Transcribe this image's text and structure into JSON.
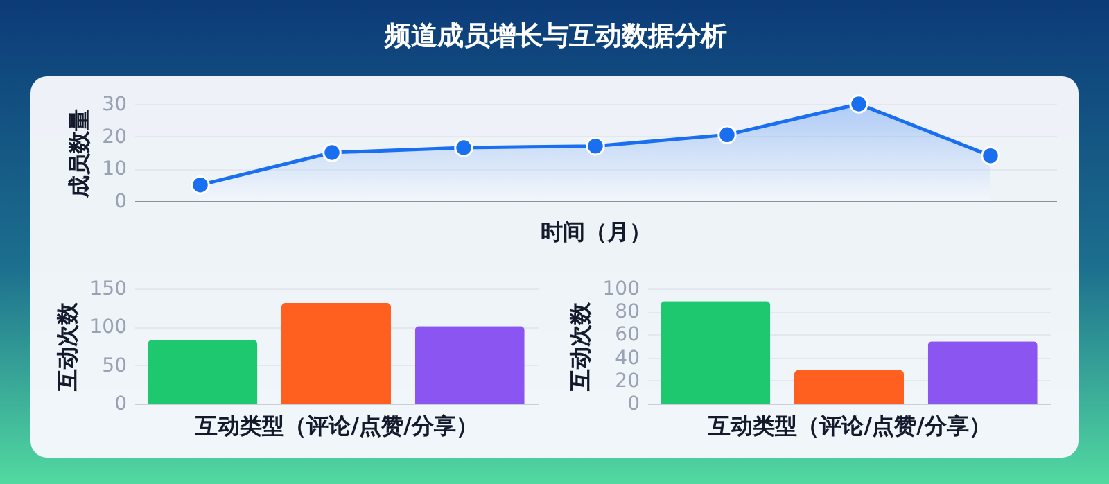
{
  "chart_data": [
    {
      "type": "area",
      "title": "频道成员增长与互动数据分析",
      "xlabel": "时间（月）",
      "ylabel": "成员数量",
      "categories": [
        null,
        null,
        null,
        null,
        null,
        null,
        null
      ],
      "ylim": [
        0,
        30
      ],
      "yticks": [
        0,
        10,
        20,
        30
      ],
      "grid": "y",
      "marker": "circle",
      "tick_labels": "y",
      "series": [
        {
          "color": "#1a6ff0",
          "values": [
            5,
            15,
            16.5,
            17,
            20.5,
            30,
            14
          ]
        }
      ]
    },
    {
      "type": "bar",
      "xlabel": "互动类型（评论/点赞/分享）",
      "ylabel": "互动次数",
      "categories": [
        null,
        null,
        null
      ],
      "values": [
        83,
        131,
        101
      ],
      "colors": [
        "#1ec86e",
        "#ff5f1f",
        "#8a55f0"
      ],
      "ylim": [
        0,
        150
      ],
      "yticks": [
        0,
        50,
        100,
        150
      ],
      "grid": "y",
      "tick_labels": "y"
    },
    {
      "type": "bar",
      "xlabel": "互动类型（评论/点赞/分享）",
      "ylabel": "互动次数",
      "categories": [
        null,
        null,
        null
      ],
      "values": [
        89,
        29,
        54
      ],
      "colors": [
        "#1ec86e",
        "#ff5f1f",
        "#8a55f0"
      ],
      "ylim": [
        0,
        100
      ],
      "yticks": [
        0,
        20,
        40,
        60,
        80,
        100
      ],
      "grid": "y",
      "tick_labels": "y"
    }
  ]
}
